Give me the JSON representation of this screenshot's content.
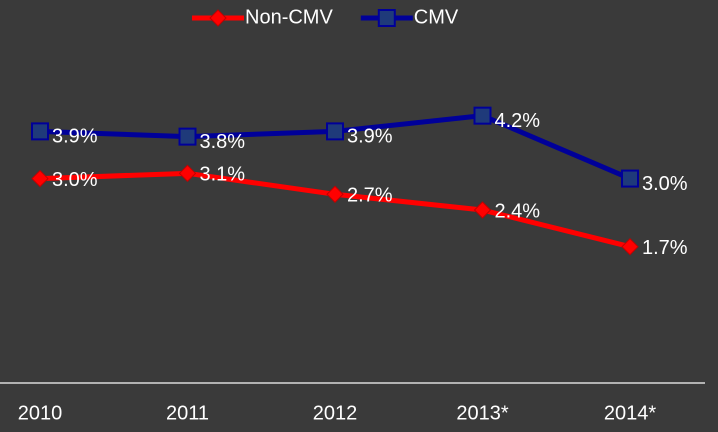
{
  "chart_data": {
    "type": "line",
    "categories": [
      "2010",
      "2011",
      "2012",
      "2013*",
      "2014*"
    ],
    "series": [
      {
        "name": "Non-CMV",
        "color": "#ff0000",
        "marker": "diamond",
        "values": [
          3.0,
          3.1,
          2.7,
          2.4,
          1.7
        ],
        "value_labels": [
          "3.0%",
          "3.1%",
          "2.7%",
          "2.4%",
          "1.7%"
        ]
      },
      {
        "name": "CMV",
        "color": "#000099",
        "marker": "square",
        "values": [
          3.9,
          3.8,
          3.9,
          4.2,
          3.0
        ],
        "value_labels": [
          "3.9%",
          "3.8%",
          "3.9%",
          "4.2%",
          "3.0%"
        ]
      }
    ],
    "ylim": [
      -0.9,
      5.3
    ],
    "legend": "top"
  }
}
